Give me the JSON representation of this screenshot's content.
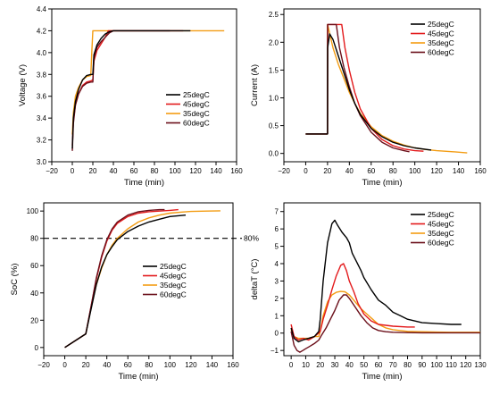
{
  "colors": {
    "25degC": "#000000",
    "45degC": "#e31a1c",
    "35degC": "#f39c12",
    "60degC": "#6b0f1a"
  },
  "chart_data": [
    {
      "id": "voltage",
      "type": "line",
      "xlabel": "Time (min)",
      "ylabel": "Voltage (V)",
      "xlim": [
        -20,
        160
      ],
      "ylim": [
        3.0,
        4.4
      ],
      "xticks": [
        -20,
        0,
        20,
        40,
        60,
        80,
        100,
        120,
        140,
        160
      ],
      "yticks": [
        3.0,
        3.2,
        3.4,
        3.6,
        3.8,
        4.0,
        4.2,
        4.4
      ],
      "tick_labels_x": [
        "−20",
        "0",
        "20",
        "40",
        "60",
        "80",
        "100",
        "120",
        "140",
        "160"
      ],
      "tick_labels_y": [
        "3.0",
        "3.2",
        "3.4",
        "3.6",
        "3.8",
        "4.0",
        "4.2",
        "4.4"
      ],
      "legend": "bottom-right",
      "series": [
        {
          "name": "25degC",
          "x": [
            0,
            1,
            3,
            6,
            10,
            14,
            18,
            20,
            21,
            24,
            28,
            32,
            36,
            40,
            60,
            80,
            100,
            115
          ],
          "y": [
            3.12,
            3.4,
            3.55,
            3.66,
            3.75,
            3.79,
            3.8,
            3.8,
            3.98,
            4.07,
            4.13,
            4.17,
            4.19,
            4.2,
            4.2,
            4.2,
            4.2,
            4.2
          ]
        },
        {
          "name": "45degC",
          "x": [
            0,
            1,
            3,
            6,
            10,
            14,
            18,
            20,
            21,
            24,
            28,
            32,
            35,
            40,
            60,
            80,
            100,
            108
          ],
          "y": [
            3.15,
            3.38,
            3.52,
            3.62,
            3.7,
            3.73,
            3.74,
            3.75,
            3.92,
            4.02,
            4.08,
            4.14,
            4.2,
            4.2,
            4.2,
            4.2,
            4.2,
            4.2
          ]
        },
        {
          "name": "35degC",
          "x": [
            0,
            1,
            3,
            6,
            10,
            14,
            18,
            19,
            20,
            30,
            50,
            80,
            110,
            148
          ],
          "y": [
            3.25,
            3.45,
            3.6,
            3.68,
            3.75,
            3.78,
            3.79,
            4.0,
            4.2,
            4.2,
            4.2,
            4.2,
            4.2,
            4.2
          ]
        },
        {
          "name": "60degC",
          "x": [
            0,
            1,
            3,
            6,
            10,
            14,
            18,
            20,
            21,
            24,
            28,
            32,
            36,
            40,
            60,
            80,
            95
          ],
          "y": [
            3.1,
            3.35,
            3.52,
            3.62,
            3.69,
            3.72,
            3.73,
            3.73,
            3.95,
            4.05,
            4.1,
            4.14,
            4.18,
            4.2,
            4.2,
            4.2,
            4.2
          ]
        }
      ]
    },
    {
      "id": "current",
      "type": "line",
      "xlabel": "Time (min)",
      "ylabel": "Current (A)",
      "xlim": [
        -20,
        160
      ],
      "ylim": [
        -0.15,
        2.6
      ],
      "xticks": [
        -20,
        0,
        20,
        40,
        60,
        80,
        100,
        120,
        140,
        160
      ],
      "yticks": [
        0.0,
        0.5,
        1.0,
        1.5,
        2.0,
        2.5
      ],
      "tick_labels_x": [
        "−20",
        "0",
        "20",
        "40",
        "60",
        "80",
        "100",
        "120",
        "140",
        "160"
      ],
      "tick_labels_y": [
        "0.0",
        "0.5",
        "1.0",
        "1.5",
        "2.0",
        "2.5"
      ],
      "legend": "top-right",
      "series": [
        {
          "name": "25degC",
          "x": [
            0,
            20,
            20.1,
            22,
            25,
            30,
            35,
            40,
            45,
            50,
            60,
            70,
            80,
            90,
            100,
            115
          ],
          "y": [
            0.35,
            0.35,
            1.9,
            2.15,
            2.05,
            1.75,
            1.45,
            1.15,
            0.9,
            0.7,
            0.45,
            0.3,
            0.2,
            0.14,
            0.1,
            0.06
          ]
        },
        {
          "name": "45degC",
          "x": [
            0,
            20,
            20.1,
            33,
            36,
            40,
            45,
            50,
            60,
            70,
            80,
            90,
            100,
            108
          ],
          "y": [
            0.35,
            0.35,
            2.32,
            2.32,
            1.9,
            1.5,
            1.1,
            0.8,
            0.45,
            0.25,
            0.14,
            0.08,
            0.05,
            0.04
          ]
        },
        {
          "name": "35degC",
          "x": [
            0,
            20,
            20.1,
            25,
            30,
            35,
            40,
            45,
            50,
            60,
            70,
            80,
            90,
            100,
            110,
            120,
            135,
            148
          ],
          "y": [
            0.35,
            0.35,
            2.32,
            1.9,
            1.6,
            1.35,
            1.1,
            0.9,
            0.72,
            0.48,
            0.32,
            0.22,
            0.15,
            0.1,
            0.07,
            0.05,
            0.03,
            0.01
          ]
        },
        {
          "name": "60degC",
          "x": [
            0,
            20,
            20.1,
            28,
            31,
            35,
            40,
            45,
            50,
            60,
            70,
            80,
            90,
            95
          ],
          "y": [
            0.35,
            0.35,
            2.32,
            2.32,
            1.9,
            1.55,
            1.2,
            0.9,
            0.68,
            0.38,
            0.2,
            0.1,
            0.05,
            0.03
          ]
        }
      ]
    },
    {
      "id": "soc",
      "type": "line",
      "xlabel": "Time (min)",
      "ylabel": "SoC (%)",
      "xlim": [
        -20,
        160
      ],
      "ylim": [
        -6,
        106
      ],
      "xticks": [
        -20,
        0,
        20,
        40,
        60,
        80,
        100,
        120,
        140,
        160
      ],
      "yticks": [
        0,
        20,
        40,
        60,
        80,
        100
      ],
      "tick_labels_x": [
        "−20",
        "0",
        "20",
        "40",
        "60",
        "80",
        "100",
        "120",
        "140",
        "160"
      ],
      "tick_labels_y": [
        "0",
        "20",
        "40",
        "60",
        "80",
        "100"
      ],
      "legend": "bottom-right",
      "reference_line": {
        "y": 80,
        "label": "80%"
      },
      "series": [
        {
          "name": "25degC",
          "x": [
            0,
            20,
            25,
            30,
            35,
            40,
            45,
            50,
            60,
            70,
            80,
            90,
            100,
            115
          ],
          "y": [
            0,
            10,
            28,
            46,
            59,
            68,
            74,
            79,
            85,
            89,
            92,
            94,
            96,
            97
          ]
        },
        {
          "name": "45degC",
          "x": [
            0,
            20,
            25,
            30,
            35,
            40,
            45,
            50,
            60,
            70,
            80,
            90,
            100,
            108
          ],
          "y": [
            0,
            10,
            30,
            50,
            66,
            78,
            86,
            91,
            96,
            98.5,
            99.5,
            100,
            100.5,
            101
          ]
        },
        {
          "name": "35degC",
          "x": [
            0,
            20,
            25,
            30,
            35,
            40,
            45,
            50,
            60,
            70,
            80,
            90,
            100,
            110,
            120,
            135,
            148
          ],
          "y": [
            0,
            10,
            29,
            46,
            58,
            68,
            75,
            80,
            87,
            92,
            95,
            97,
            98.5,
            99.2,
            99.7,
            100,
            100.2
          ]
        },
        {
          "name": "60degC",
          "x": [
            0,
            20,
            25,
            30,
            35,
            40,
            45,
            50,
            60,
            70,
            80,
            90,
            95
          ],
          "y": [
            0,
            10,
            30,
            51,
            67,
            79,
            87,
            92,
            97,
            99.5,
            100.5,
            101,
            101
          ]
        }
      ]
    },
    {
      "id": "deltaT",
      "type": "line",
      "xlabel": "Time (min)",
      "ylabel": "deltaT (°C)",
      "xlim": [
        -5,
        130
      ],
      "ylim": [
        -1.3,
        7.5
      ],
      "xticks": [
        0,
        10,
        20,
        30,
        40,
        50,
        60,
        70,
        80,
        90,
        100,
        110,
        120,
        130
      ],
      "yticks": [
        -1,
        0,
        1,
        2,
        3,
        4,
        5,
        6,
        7
      ],
      "tick_labels_x": [
        "0",
        "10",
        "20",
        "30",
        "40",
        "50",
        "60",
        "70",
        "80",
        "90",
        "100",
        "110",
        "120",
        "130"
      ],
      "tick_labels_y": [
        "−1",
        "0",
        "1",
        "2",
        "3",
        "4",
        "5",
        "6",
        "7"
      ],
      "legend": "top-right",
      "series": [
        {
          "name": "25degC",
          "x": [
            0,
            2,
            5,
            8,
            12,
            16,
            19,
            20,
            22,
            25,
            28,
            30,
            32,
            35,
            38,
            40,
            42,
            45,
            48,
            50,
            55,
            60,
            65,
            70,
            75,
            80,
            90,
            100,
            110,
            117
          ],
          "y": [
            0.3,
            -0.3,
            -0.5,
            -0.4,
            -0.3,
            -0.2,
            0.1,
            0.8,
            3.0,
            5.2,
            6.3,
            6.5,
            6.2,
            5.8,
            5.5,
            5.2,
            4.6,
            4.1,
            3.6,
            3.2,
            2.5,
            1.9,
            1.6,
            1.2,
            1.0,
            0.8,
            0.6,
            0.55,
            0.5,
            0.5
          ]
        },
        {
          "name": "45degC",
          "x": [
            0,
            2,
            5,
            8,
            12,
            16,
            19,
            20,
            22,
            25,
            28,
            31,
            34,
            36,
            38,
            40,
            43,
            46,
            50,
            55,
            60,
            70,
            80,
            85
          ],
          "y": [
            0.5,
            -0.2,
            -0.4,
            -0.3,
            -0.4,
            -0.2,
            0.0,
            0.1,
            0.8,
            1.6,
            2.5,
            3.3,
            3.9,
            4.0,
            3.6,
            3.0,
            2.4,
            1.7,
            1.1,
            0.7,
            0.5,
            0.4,
            0.35,
            0.35
          ]
        },
        {
          "name": "35degC",
          "x": [
            0,
            2,
            5,
            8,
            12,
            16,
            19,
            20,
            22,
            25,
            28,
            31,
            34,
            37,
            40,
            44,
            48,
            52,
            56,
            60,
            65,
            70,
            80,
            90,
            100,
            110,
            120,
            130
          ],
          "y": [
            0.2,
            -0.2,
            -0.3,
            -0.3,
            -0.3,
            -0.2,
            -0.2,
            0.1,
            1.0,
            1.8,
            2.2,
            2.35,
            2.4,
            2.38,
            2.2,
            1.8,
            1.4,
            1.1,
            0.8,
            0.5,
            0.3,
            0.2,
            0.1,
            0.08,
            0.06,
            0.05,
            0.05,
            0.05
          ]
        },
        {
          "name": "60degC",
          "x": [
            0,
            2,
            4,
            6,
            8,
            10,
            12,
            16,
            19,
            21,
            24,
            27,
            30,
            33,
            36,
            38,
            40,
            44,
            48,
            52,
            56,
            60,
            65,
            70,
            80,
            90,
            100,
            110,
            120,
            130
          ],
          "y": [
            0.1,
            -0.7,
            -1.0,
            -1.1,
            -1.0,
            -0.9,
            -0.8,
            -0.6,
            -0.4,
            -0.1,
            0.3,
            0.8,
            1.3,
            1.9,
            2.2,
            2.2,
            2.0,
            1.5,
            1.0,
            0.6,
            0.3,
            0.15,
            0.08,
            0.05,
            0.03,
            0.02,
            0.02,
            0.02,
            0.02,
            0.02
          ]
        }
      ]
    }
  ]
}
